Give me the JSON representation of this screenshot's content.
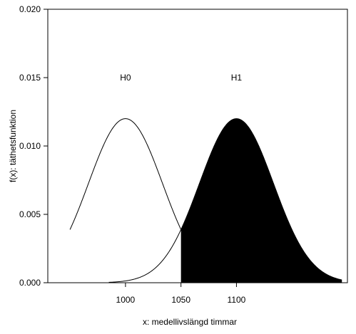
{
  "chart_data": {
    "type": "area",
    "xlabel": "x: medellivslängd timmar",
    "ylabel": "f(x): täthetsfunktion",
    "xlim": [
      930,
      1200
    ],
    "ylim": [
      0,
      0.02
    ],
    "x_ticks": [
      1000,
      1050,
      1100
    ],
    "y_ticks": [
      0.0,
      0.005,
      0.01,
      0.015,
      0.02
    ],
    "y_tick_labels": [
      "0.000",
      "0.005",
      "0.010",
      "0.015",
      "0.020"
    ],
    "grid": false,
    "series": [
      {
        "name": "H0",
        "distribution": "normal",
        "mean": 1000,
        "sd": 33.3,
        "peak": 0.012,
        "x_range": [
          950,
          1085
        ],
        "fill": "none"
      },
      {
        "name": "H1",
        "distribution": "normal",
        "mean": 1100,
        "sd": 33.3,
        "peak": 0.012,
        "x_range": [
          985,
          1195
        ],
        "shaded_from_x": 1050,
        "fill": "#000000"
      }
    ],
    "annotations": [
      {
        "text": "H0",
        "x": 1000,
        "y": 0.015
      },
      {
        "text": "H1",
        "x": 1100,
        "y": 0.015
      }
    ]
  }
}
